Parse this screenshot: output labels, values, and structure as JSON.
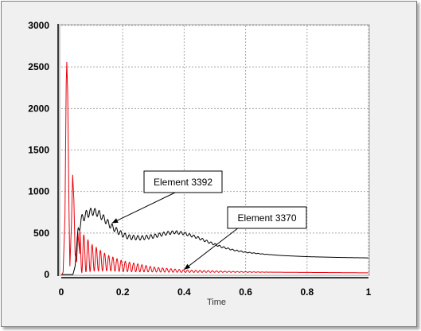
{
  "chart_data": {
    "type": "line",
    "title": "",
    "xlabel": "Time",
    "ylabel": "",
    "xlim": [
      0,
      1
    ],
    "ylim": [
      0,
      3000
    ],
    "x_ticks": [
      "0",
      "0.2",
      "0.4",
      "0.6",
      "0.8",
      "1"
    ],
    "y_ticks": [
      "0",
      "500",
      "1000",
      "1500",
      "2000",
      "2500",
      "3000"
    ],
    "grid": true,
    "series": [
      {
        "name": "Element 3392",
        "color": "#000000",
        "envelope": [
          [
            0,
            0
          ],
          [
            0.038,
            0
          ],
          [
            0.045,
            100
          ],
          [
            0.05,
            320
          ],
          [
            0.055,
            520
          ],
          [
            0.065,
            660
          ],
          [
            0.08,
            720
          ],
          [
            0.1,
            760
          ],
          [
            0.12,
            740
          ],
          [
            0.14,
            670
          ],
          [
            0.16,
            590
          ],
          [
            0.18,
            530
          ],
          [
            0.2,
            480
          ],
          [
            0.22,
            450
          ],
          [
            0.26,
            440
          ],
          [
            0.3,
            460
          ],
          [
            0.34,
            495
          ],
          [
            0.37,
            510
          ],
          [
            0.4,
            495
          ],
          [
            0.44,
            450
          ],
          [
            0.48,
            390
          ],
          [
            0.52,
            335
          ],
          [
            0.56,
            295
          ],
          [
            0.6,
            268
          ],
          [
            0.66,
            245
          ],
          [
            0.72,
            228
          ],
          [
            0.8,
            215
          ],
          [
            0.9,
            206
          ],
          [
            1.0,
            200
          ]
        ],
        "ripple": [
          [
            0.05,
            55
          ],
          [
            0.2,
            30
          ],
          [
            0.45,
            15
          ],
          [
            0.55,
            8
          ],
          [
            0.7,
            0
          ]
        ]
      },
      {
        "name": "Element 3370",
        "color": "#e8000b",
        "points": [
          [
            0,
            0
          ],
          [
            0.003,
            0
          ],
          [
            0.006,
            30
          ],
          [
            0.012,
            700
          ],
          [
            0.016,
            2300
          ],
          [
            0.018,
            2560
          ],
          [
            0.021,
            2150
          ],
          [
            0.025,
            800
          ],
          [
            0.028,
            100
          ],
          [
            0.033,
            600
          ],
          [
            0.037,
            1200
          ],
          [
            0.041,
            900
          ],
          [
            0.045,
            250
          ],
          [
            0.05,
            150
          ],
          [
            0.054,
            500
          ],
          [
            0.06,
            250
          ]
        ],
        "damped": {
          "x0": 0.06,
          "period": 0.0135,
          "base": [
            [
              0.06,
              280
            ],
            [
              0.1,
              200
            ],
            [
              0.15,
              140
            ],
            [
              0.2,
              100
            ],
            [
              0.3,
              60
            ],
            [
              0.4,
              40
            ],
            [
              0.6,
              30
            ],
            [
              1.0,
              20
            ]
          ],
          "amp": [
            [
              0.06,
              260
            ],
            [
              0.1,
              160
            ],
            [
              0.15,
              95
            ],
            [
              0.2,
              65
            ],
            [
              0.3,
              30
            ],
            [
              0.4,
              15
            ],
            [
              0.55,
              6
            ],
            [
              0.7,
              0
            ]
          ]
        }
      }
    ],
    "annotations": [
      {
        "text": "Element 3392",
        "target": [
          0.165,
          620
        ]
      },
      {
        "text": "Element 3370",
        "target": [
          0.4,
          60
        ]
      }
    ]
  }
}
